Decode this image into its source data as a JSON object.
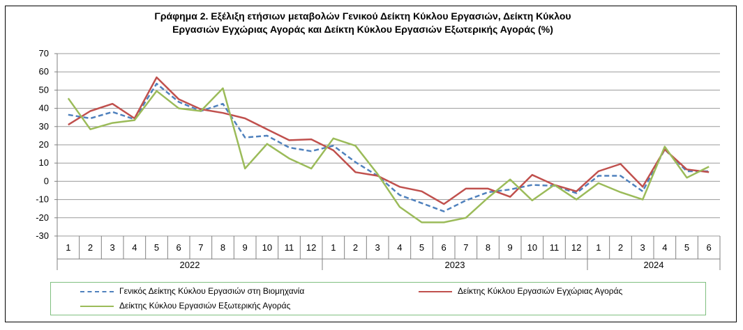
{
  "chart_data": {
    "type": "line",
    "title_lines": [
      "Γράφημα 2. Εξέλιξη ετήσιων μεταβολών Γενικού Δείκτη Κύκλου Εργασιών,  Δείκτη Κύκλου",
      "Εργασιών Εγχώριας Αγοράς και Δείκτη Κύκλου Εργασιών Εξωτερικής Αγοράς (%)"
    ],
    "months": [
      "1",
      "2",
      "3",
      "4",
      "5",
      "6",
      "7",
      "8",
      "9",
      "10",
      "11",
      "12",
      "1",
      "2",
      "3",
      "4",
      "5",
      "6",
      "7",
      "8",
      "9",
      "10",
      "11",
      "12",
      "1",
      "2",
      "3",
      "4",
      "5",
      "6"
    ],
    "years": [
      {
        "label": "2022",
        "months": 12
      },
      {
        "label": "2023",
        "months": 12
      },
      {
        "label": "2024",
        "months": 6
      }
    ],
    "ylim": [
      -30,
      70
    ],
    "yticks": [
      "70",
      "60",
      "50",
      "40",
      "30",
      "20",
      "10",
      "0",
      "-10",
      "-20",
      "-30"
    ],
    "grid": true,
    "series": [
      {
        "name": "Γενικός Δείκτης Κύκλου Εργασιών στη Βιομηχανία",
        "color": "#4f81bd",
        "style": "dashed",
        "values": [
          36.5,
          34.5,
          38.0,
          34.0,
          53.5,
          43.5,
          38.5,
          42.5,
          24.0,
          25.0,
          18.5,
          16.5,
          19.5,
          10.5,
          3.0,
          -7.5,
          -12.0,
          -16.5,
          -10.5,
          -6.0,
          -4.5,
          -2.0,
          -2.5,
          -6.5,
          3.0,
          3.0,
          -5.5,
          17.5,
          5.5,
          5.5
        ]
      },
      {
        "name": "Δείκτης Κύκλου Εργασιών Εγχώριας Αγοράς",
        "color": "#c0504d",
        "style": "solid",
        "values": [
          31.0,
          38.5,
          42.5,
          34.5,
          57.0,
          45.0,
          39.5,
          37.5,
          34.5,
          28.5,
          22.5,
          23.0,
          17.0,
          5.0,
          3.0,
          -3.0,
          -5.5,
          -12.5,
          -4.0,
          -4.0,
          -8.5,
          3.5,
          -2.0,
          -5.5,
          5.5,
          9.5,
          -3.0,
          17.5,
          6.5,
          5.0
        ]
      },
      {
        "name": "Δείκτης Κύκλου Εργασιών Εξωτερικής Αγοράς",
        "color": "#9bbb59",
        "style": "solid",
        "values": [
          45.5,
          28.5,
          32.0,
          33.5,
          49.5,
          40.0,
          38.5,
          51.0,
          7.0,
          20.5,
          12.5,
          7.0,
          23.5,
          19.5,
          4.0,
          -14.0,
          -22.5,
          -22.5,
          -20.0,
          -9.0,
          1.0,
          -10.5,
          -2.0,
          -10.0,
          -1.0,
          -6.0,
          -10.0,
          19.0,
          2.0,
          8.0
        ]
      }
    ],
    "legend_position": "bottom"
  }
}
